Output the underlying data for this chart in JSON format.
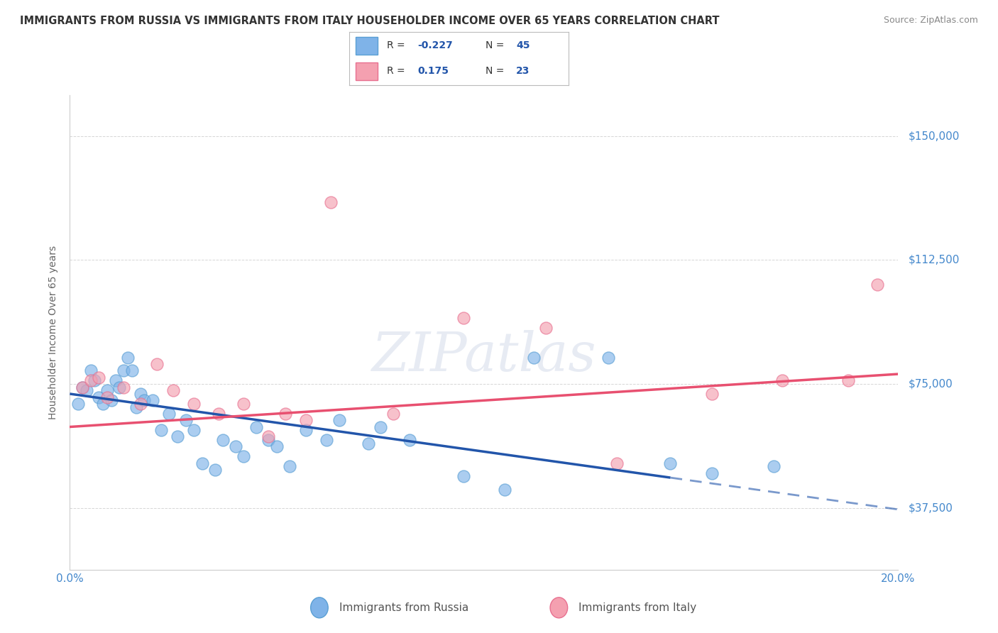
{
  "title": "IMMIGRANTS FROM RUSSIA VS IMMIGRANTS FROM ITALY HOUSEHOLDER INCOME OVER 65 YEARS CORRELATION CHART",
  "source": "Source: ZipAtlas.com",
  "ylabel": "Householder Income Over 65 years",
  "watermark": "ZIPatlas",
  "russia_R": -0.227,
  "russia_N": 45,
  "italy_R": 0.175,
  "italy_N": 23,
  "xlim": [
    0.0,
    20.0
  ],
  "ylim": [
    18750,
    162500
  ],
  "yticks": [
    37500,
    75000,
    112500,
    150000
  ],
  "ytick_labels": [
    "$37,500",
    "$75,000",
    "$112,500",
    "$150,000"
  ],
  "xticks": [
    0.0,
    2.5,
    5.0,
    7.5,
    10.0,
    12.5,
    15.0,
    17.5,
    20.0
  ],
  "xtick_labels": [
    "0.0%",
    "",
    "",
    "",
    "",
    "",
    "",
    "",
    "20.0%"
  ],
  "russia_color": "#7fb3e8",
  "russia_edge_color": "#5a9fd4",
  "italy_color": "#f4a0b0",
  "italy_edge_color": "#e87090",
  "russia_line_color": "#2255aa",
  "italy_line_color": "#e85070",
  "background_color": "#ffffff",
  "grid_color": "#cccccc",
  "title_color": "#333333",
  "axis_tick_color": "#4488cc",
  "russia_x": [
    0.2,
    0.3,
    0.4,
    0.5,
    0.6,
    0.7,
    0.8,
    0.9,
    1.0,
    1.1,
    1.2,
    1.3,
    1.4,
    1.5,
    1.6,
    1.7,
    1.8,
    2.0,
    2.2,
    2.4,
    2.6,
    2.8,
    3.0,
    3.2,
    3.5,
    3.7,
    4.0,
    4.2,
    4.5,
    4.8,
    5.0,
    5.3,
    5.7,
    6.2,
    6.5,
    7.2,
    7.5,
    8.2,
    9.5,
    10.5,
    11.2,
    13.0,
    14.5,
    15.5,
    17.0
  ],
  "russia_y": [
    69000,
    74000,
    73000,
    79000,
    76000,
    71000,
    69000,
    73000,
    70000,
    76000,
    74000,
    79000,
    83000,
    79000,
    68000,
    72000,
    70000,
    70000,
    61000,
    66000,
    59000,
    64000,
    61000,
    51000,
    49000,
    58000,
    56000,
    53000,
    62000,
    58000,
    56000,
    50000,
    61000,
    58000,
    64000,
    57000,
    62000,
    58000,
    47000,
    43000,
    83000,
    83000,
    51000,
    48000,
    50000
  ],
  "italy_x": [
    0.3,
    0.5,
    0.7,
    0.9,
    1.3,
    1.7,
    2.1,
    2.5,
    3.0,
    3.6,
    4.2,
    4.8,
    5.2,
    5.7,
    6.3,
    7.8,
    9.5,
    11.5,
    13.2,
    15.5,
    17.2,
    18.8,
    19.5
  ],
  "italy_y": [
    74000,
    76000,
    77000,
    71000,
    74000,
    69000,
    81000,
    73000,
    69000,
    66000,
    69000,
    59000,
    66000,
    64000,
    130000,
    66000,
    95000,
    92000,
    51000,
    72000,
    76000,
    76000,
    105000
  ],
  "russia_line_x0": 0.0,
  "russia_line_x_solid_end": 14.5,
  "russia_line_x1": 20.0,
  "italy_line_x0": 0.0,
  "italy_line_x1": 20.0,
  "russia_line_y0": 72000,
  "russia_line_y1": 37000,
  "italy_line_y0": 62000,
  "italy_line_y1": 78000
}
